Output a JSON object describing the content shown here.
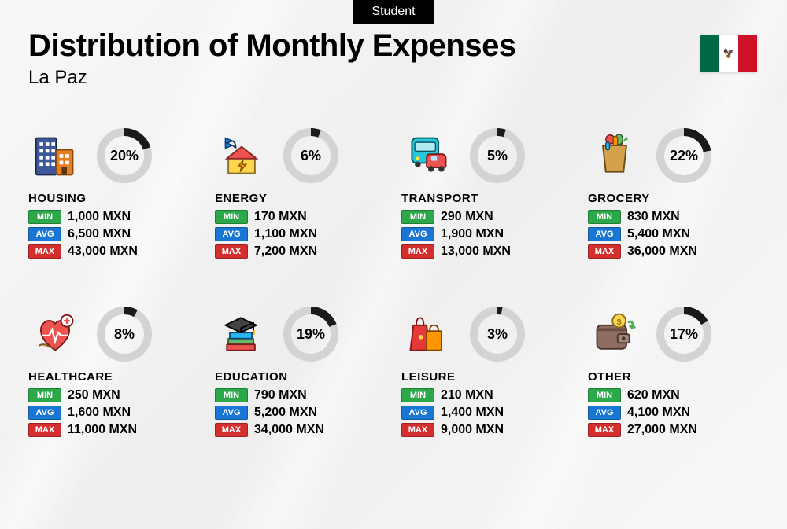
{
  "tag": "Student",
  "title": "Distribution of Monthly Expenses",
  "subtitle": "La Paz",
  "flag": {
    "country": "Mexico",
    "emblem": "🦅"
  },
  "currency": "MXN",
  "labels": {
    "min": "MIN",
    "avg": "AVG",
    "max": "MAX"
  },
  "donut": {
    "radius": 30,
    "stroke": 10,
    "fg": "#1a1a1a",
    "bg": "#d3d3d3"
  },
  "pill_colors": {
    "min": "#2ba84a",
    "avg": "#1976d2",
    "max": "#d32f2f"
  },
  "categories": [
    {
      "key": "housing",
      "name": "HOUSING",
      "percent": 20,
      "min": "1,000",
      "avg": "6,500",
      "max": "43,000",
      "icon": "buildings"
    },
    {
      "key": "energy",
      "name": "ENERGY",
      "percent": 6,
      "min": "170",
      "avg": "1,100",
      "max": "7,200",
      "icon": "energy"
    },
    {
      "key": "transport",
      "name": "TRANSPORT",
      "percent": 5,
      "min": "290",
      "avg": "1,900",
      "max": "13,000",
      "icon": "transport"
    },
    {
      "key": "grocery",
      "name": "GROCERY",
      "percent": 22,
      "min": "830",
      "avg": "5,400",
      "max": "36,000",
      "icon": "grocery"
    },
    {
      "key": "healthcare",
      "name": "HEALTHCARE",
      "percent": 8,
      "min": "250",
      "avg": "1,600",
      "max": "11,000",
      "icon": "healthcare"
    },
    {
      "key": "education",
      "name": "EDUCATION",
      "percent": 19,
      "min": "790",
      "avg": "5,200",
      "max": "34,000",
      "icon": "education"
    },
    {
      "key": "leisure",
      "name": "LEISURE",
      "percent": 3,
      "min": "210",
      "avg": "1,400",
      "max": "9,000",
      "icon": "leisure"
    },
    {
      "key": "other",
      "name": "OTHER",
      "percent": 17,
      "min": "620",
      "avg": "4,100",
      "max": "27,000",
      "icon": "wallet"
    }
  ],
  "icons": {
    "buildings": {
      "type": "svg"
    },
    "energy": {
      "type": "svg"
    },
    "transport": {
      "type": "svg"
    },
    "grocery": {
      "type": "svg"
    },
    "healthcare": {
      "type": "svg"
    },
    "education": {
      "type": "svg"
    },
    "leisure": {
      "type": "svg"
    },
    "wallet": {
      "type": "svg"
    }
  }
}
